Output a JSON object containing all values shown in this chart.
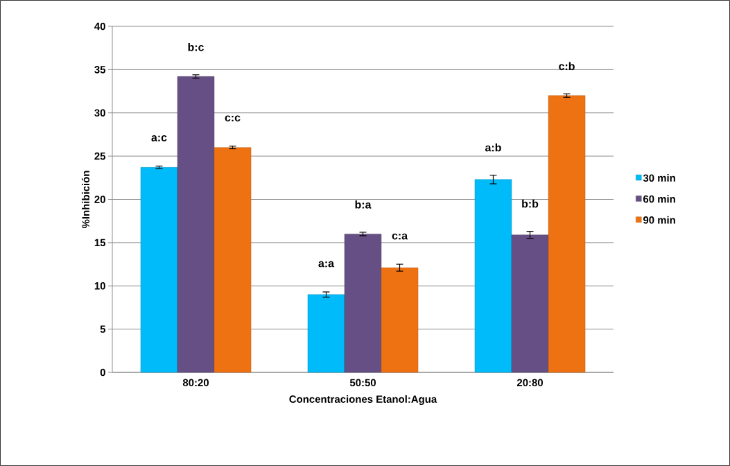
{
  "chart_data": {
    "type": "bar",
    "xlabel": "Concentraciones Etanol:Agua",
    "ylabel": "%Inhibición",
    "categories": [
      "80:20",
      "50:50",
      "20:80"
    ],
    "series": [
      {
        "name": "30 min",
        "color": "#00bbf9",
        "values": [
          23.7,
          9.0,
          22.3
        ],
        "errors": [
          0.15,
          0.3,
          0.5
        ]
      },
      {
        "name": "60 min",
        "color": "#664f84",
        "values": [
          34.2,
          16.0,
          15.9
        ],
        "errors": [
          0.2,
          0.2,
          0.4
        ]
      },
      {
        "name": "90 min",
        "color": "#ef7212",
        "values": [
          26.0,
          12.1,
          32.0
        ],
        "errors": [
          0.15,
          0.4,
          0.2
        ]
      }
    ],
    "annotations": [
      "a:c",
      "b:c",
      "c:c",
      "a:a",
      "b:a",
      "c:a",
      "a:b",
      "b:b",
      "c:b"
    ],
    "ylim": [
      0,
      40
    ],
    "yticks": [
      0,
      5,
      10,
      15,
      20,
      25,
      30,
      35,
      40
    ],
    "grid": "y",
    "legend": "right"
  }
}
